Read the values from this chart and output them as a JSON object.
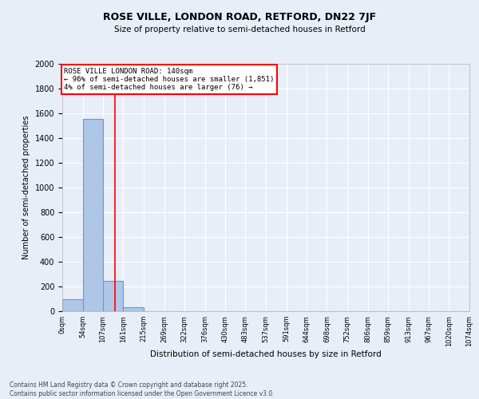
{
  "title1": "ROSE VILLE, LONDON ROAD, RETFORD, DN22 7JF",
  "title2": "Size of property relative to semi-detached houses in Retford",
  "xlabel": "Distribution of semi-detached houses by size in Retford",
  "ylabel": "Number of semi-detached properties",
  "bar_edges": [
    0,
    54,
    107,
    161,
    215,
    269,
    322,
    376,
    430,
    483,
    537,
    591,
    644,
    698,
    752,
    806,
    859,
    913,
    967,
    1020,
    1074
  ],
  "bar_heights": [
    97,
    1558,
    242,
    30,
    0,
    0,
    0,
    0,
    0,
    0,
    0,
    0,
    0,
    0,
    0,
    0,
    0,
    0,
    0,
    0
  ],
  "property_size": 140,
  "bar_color": "#aec6e8",
  "bar_edge_color": "#5a9fd4",
  "vline_color": "red",
  "vline_x": 140,
  "annotation_text": "ROSE VILLE LONDON ROAD: 140sqm\n← 96% of semi-detached houses are smaller (1,851)\n4% of semi-detached houses are larger (76) →",
  "annotation_box_color": "white",
  "annotation_box_edge": "red",
  "ylim": [
    0,
    2000
  ],
  "yticks": [
    0,
    200,
    400,
    600,
    800,
    1000,
    1200,
    1400,
    1600,
    1800,
    2000
  ],
  "background_color": "#e8eef8",
  "grid_color": "white",
  "footnote": "Contains HM Land Registry data © Crown copyright and database right 2025.\nContains public sector information licensed under the Open Government Licence v3.0."
}
